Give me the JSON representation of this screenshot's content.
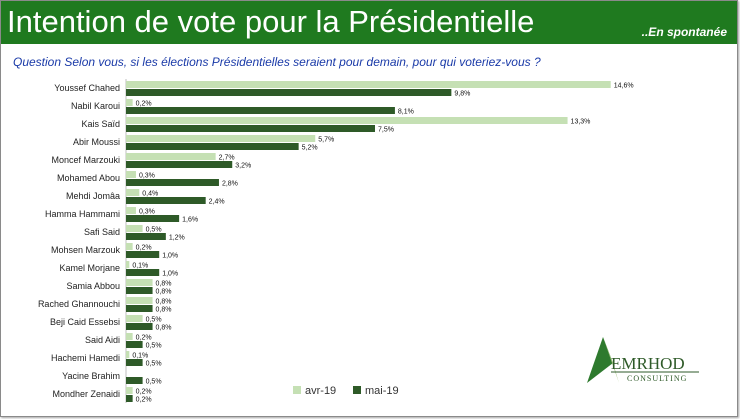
{
  "header": {
    "title": "Intention de vote pour la Présidentielle",
    "subtitle": "..En spontanée"
  },
  "question": "Question Selon vous, si les élections Présidentielles seraient pour demain, pour qui voteriez-vous ?",
  "logo": {
    "name": "EMRHOD",
    "tagline": "CONSULTING"
  },
  "colors": {
    "banner": "#1f7a1f",
    "question_text": "#1a3aa8",
    "series_avr": "#c5e0b4",
    "series_mai": "#2e5a28"
  },
  "chart_data": {
    "type": "bar",
    "orientation": "horizontal",
    "categories": [
      "Youssef Chahed",
      "Nabil Karoui",
      "Kais Saïd",
      "Abir Moussi",
      "Moncef Marzouki",
      "Mohamed Abou",
      "Mehdi Jomâa",
      "Hamma Hammami",
      "Safi Said",
      "Mohsen Marzouk",
      "Kamel Morjane",
      "Samia Abbou",
      "Rached Ghannouchi",
      "Beji Caid Essebsi",
      "Said Aidi",
      "Hachemi Hamedi",
      "Yacine Brahim",
      "Mondher Zenaidi"
    ],
    "series": [
      {
        "name": "avr-19",
        "values": [
          14.6,
          0.2,
          13.3,
          5.7,
          2.7,
          0.3,
          0.4,
          0.3,
          0.5,
          0.2,
          0.1,
          0.8,
          0.8,
          0.5,
          0.2,
          0.1,
          null,
          0.2
        ],
        "labels": [
          "14,6%",
          "0,2%",
          "13,3%",
          "5,7%",
          "2,7%",
          "0,3%",
          "0,4%",
          "0,3%",
          "0,5%",
          "0,2%",
          "0,1%",
          "0,8%",
          "0,8%",
          "0,5%",
          "0,2%",
          "0,1%",
          "",
          "0,2%"
        ]
      },
      {
        "name": "mai-19",
        "values": [
          9.8,
          8.1,
          7.5,
          5.2,
          3.2,
          2.8,
          2.4,
          1.6,
          1.2,
          1.0,
          1.0,
          0.8,
          0.8,
          0.8,
          0.5,
          0.5,
          0.5,
          0.2
        ],
        "labels": [
          "9,8%",
          "8,1%",
          "7,5%",
          "5,2%",
          "3,2%",
          "2,8%",
          "2,4%",
          "1,6%",
          "1,2%",
          "1,0%",
          "1,0%",
          "0,8%",
          "0,8%",
          "0,8%",
          "0,5%",
          "0,5%",
          "0,5%",
          "0,2%"
        ]
      }
    ],
    "legend_position": "bottom",
    "grid": false
  }
}
